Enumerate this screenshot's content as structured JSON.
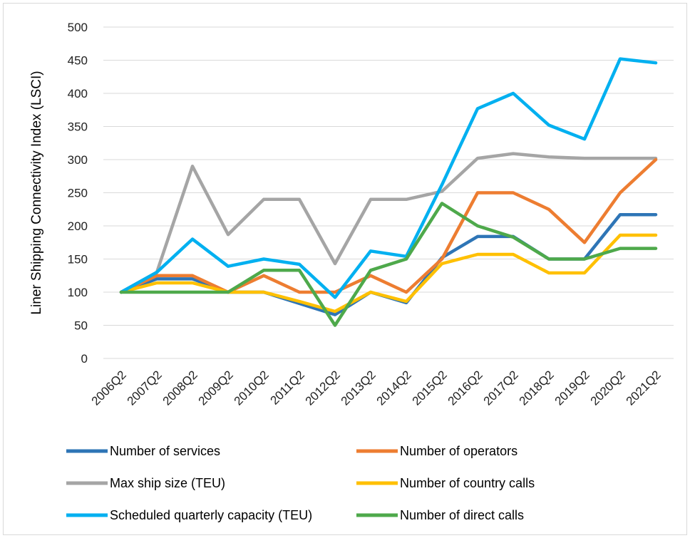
{
  "chart_data": {
    "type": "line",
    "title": "",
    "xlabel": "",
    "ylabel": "Liner Shipping Connectivity Index (LSCI)",
    "ylim": [
      0,
      500
    ],
    "yticks": [
      "0",
      "50",
      "100",
      "150",
      "200",
      "250",
      "300",
      "350",
      "400",
      "450",
      "500"
    ],
    "grid": "horizontal",
    "legend_position": "bottom",
    "categories": [
      "2006Q2",
      "2007Q2",
      "2008Q2",
      "2009Q2",
      "2010Q2",
      "2011Q2",
      "2012Q2",
      "2013Q2",
      "2014Q2",
      "2015Q2",
      "2016Q2",
      "2017Q2",
      "2018Q2",
      "2019Q2",
      "2020Q2",
      "2021Q2"
    ],
    "series": [
      {
        "name": "Max ship size (TEU)",
        "color": "#a5a5a5",
        "values": [
          100,
          130,
          290,
          187,
          240,
          240,
          143,
          240,
          240,
          252,
          302,
          309,
          304,
          302,
          302,
          302
        ]
      },
      {
        "name": "Number of services",
        "color": "#2e75b6",
        "values": [
          100,
          120,
          120,
          100,
          100,
          83,
          66,
          100,
          84,
          152,
          184,
          184,
          150,
          150,
          217,
          217
        ]
      },
      {
        "name": "Number of operators",
        "color": "#ed7d31",
        "values": [
          100,
          125,
          125,
          100,
          125,
          100,
          100,
          125,
          100,
          150,
          250,
          250,
          225,
          175,
          250,
          300
        ]
      },
      {
        "name": "Number of country calls",
        "color": "#ffc000",
        "values": [
          100,
          114,
          114,
          100,
          100,
          86,
          71,
          100,
          86,
          143,
          157,
          157,
          129,
          129,
          186,
          186
        ]
      },
      {
        "name": "Scheduled quarterly capacity (TEU)",
        "color": "#00b0f0",
        "values": [
          100,
          130,
          180,
          139,
          150,
          142,
          92,
          162,
          154,
          262,
          377,
          400,
          352,
          331,
          452,
          446
        ]
      },
      {
        "name": "Number of direct calls",
        "color": "#4ea94b",
        "values": [
          100,
          100,
          100,
          100,
          133,
          133,
          50,
          133,
          150,
          234,
          200,
          183,
          150,
          150,
          166,
          166
        ]
      }
    ],
    "legend": [
      {
        "name": "Number of services",
        "color": "#2e75b6"
      },
      {
        "name": "Number of operators",
        "color": "#ed7d31"
      },
      {
        "name": "Max ship size (TEU)",
        "color": "#a5a5a5"
      },
      {
        "name": "Number of country calls",
        "color": "#ffc000"
      },
      {
        "name": "Scheduled quarterly capacity (TEU)",
        "color": "#00b0f0"
      },
      {
        "name": "Number of direct calls",
        "color": "#4ea94b"
      }
    ]
  }
}
